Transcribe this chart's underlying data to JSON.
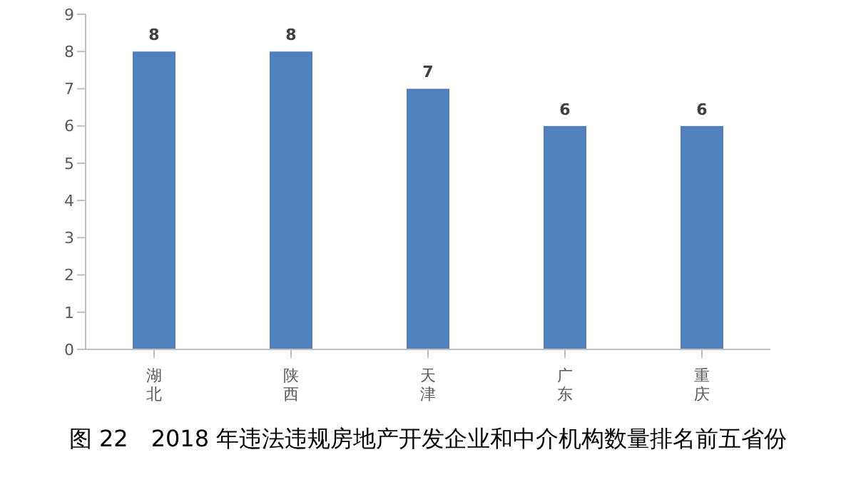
{
  "chart_data": {
    "type": "bar",
    "title": "图 22　2018 年违法违规房地产开发企业和中介机构数量排名前五省份",
    "categories": [
      "湖北",
      "陕西",
      "天津",
      "广东",
      "重庆"
    ],
    "values": [
      8,
      8,
      7,
      6,
      6
    ],
    "color": "#4f81bd",
    "data_labels": true,
    "ylim": [
      0,
      9
    ],
    "yticks": [
      0,
      1,
      2,
      3,
      4,
      5,
      6,
      7,
      8,
      9
    ],
    "grid": false,
    "legend": false
  }
}
